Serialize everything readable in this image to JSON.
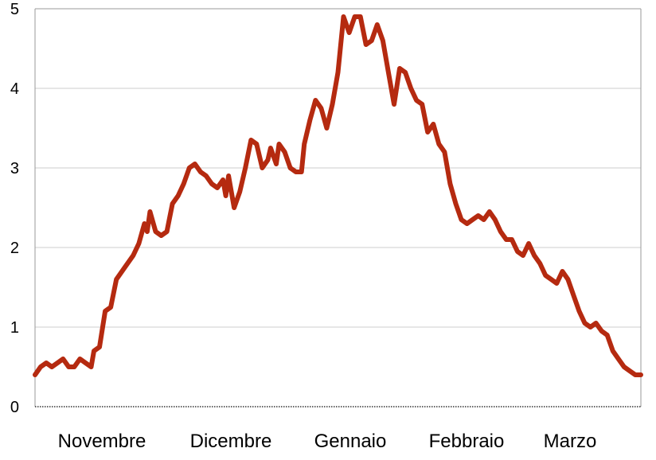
{
  "chart_data": {
    "type": "line",
    "title": "",
    "xlabel": "",
    "ylabel": "",
    "ylim": [
      0,
      5
    ],
    "yticks": [
      "0",
      "1",
      "2",
      "3",
      "4",
      "5"
    ],
    "x_tick_labels": [
      "Novembre",
      "Dicembre",
      "Gennaio",
      "Febbraio",
      "Marzo"
    ],
    "grid": true,
    "legend": "none",
    "x_unit": "day index from start of Novembre",
    "series": [
      {
        "color": "#b52a10",
        "points": [
          [
            0,
            0.4
          ],
          [
            2,
            0.5
          ],
          [
            4,
            0.55
          ],
          [
            6,
            0.5
          ],
          [
            8,
            0.55
          ],
          [
            10,
            0.6
          ],
          [
            12,
            0.5
          ],
          [
            14,
            0.5
          ],
          [
            16,
            0.6
          ],
          [
            18,
            0.55
          ],
          [
            20,
            0.5
          ],
          [
            21,
            0.7
          ],
          [
            23,
            0.75
          ],
          [
            25,
            1.2
          ],
          [
            27,
            1.25
          ],
          [
            29,
            1.6
          ],
          [
            32,
            1.75
          ],
          [
            35,
            1.9
          ],
          [
            37,
            2.05
          ],
          [
            39,
            2.3
          ],
          [
            40,
            2.2
          ],
          [
            41,
            2.45
          ],
          [
            43,
            2.2
          ],
          [
            45,
            2.15
          ],
          [
            47,
            2.2
          ],
          [
            49,
            2.55
          ],
          [
            51,
            2.65
          ],
          [
            53,
            2.8
          ],
          [
            55,
            3.0
          ],
          [
            57,
            3.05
          ],
          [
            59,
            2.95
          ],
          [
            61,
            2.9
          ],
          [
            63,
            2.8
          ],
          [
            65,
            2.75
          ],
          [
            67,
            2.85
          ],
          [
            68,
            2.65
          ],
          [
            69,
            2.9
          ],
          [
            71,
            2.5
          ],
          [
            73,
            2.7
          ],
          [
            75,
            3.0
          ],
          [
            77,
            3.35
          ],
          [
            79,
            3.3
          ],
          [
            81,
            3.0
          ],
          [
            83,
            3.1
          ],
          [
            84,
            3.25
          ],
          [
            86,
            3.05
          ],
          [
            87,
            3.3
          ],
          [
            89,
            3.2
          ],
          [
            91,
            3.0
          ],
          [
            93,
            2.95
          ],
          [
            95,
            2.95
          ],
          [
            96,
            3.3
          ],
          [
            98,
            3.6
          ],
          [
            100,
            3.85
          ],
          [
            102,
            3.75
          ],
          [
            104,
            3.5
          ],
          [
            106,
            3.8
          ],
          [
            108,
            4.2
          ],
          [
            110,
            4.9
          ],
          [
            112,
            4.7
          ],
          [
            114,
            4.9
          ],
          [
            116,
            4.9
          ],
          [
            118,
            4.55
          ],
          [
            120,
            4.6
          ],
          [
            122,
            4.8
          ],
          [
            124,
            4.6
          ],
          [
            126,
            4.2
          ],
          [
            128,
            3.8
          ],
          [
            130,
            4.25
          ],
          [
            132,
            4.2
          ],
          [
            134,
            4.0
          ],
          [
            136,
            3.85
          ],
          [
            138,
            3.8
          ],
          [
            140,
            3.45
          ],
          [
            142,
            3.55
          ],
          [
            144,
            3.3
          ],
          [
            146,
            3.2
          ],
          [
            148,
            2.8
          ],
          [
            150,
            2.55
          ],
          [
            152,
            2.35
          ],
          [
            154,
            2.3
          ],
          [
            156,
            2.35
          ],
          [
            158,
            2.4
          ],
          [
            160,
            2.35
          ],
          [
            162,
            2.45
          ],
          [
            164,
            2.35
          ],
          [
            166,
            2.2
          ],
          [
            168,
            2.1
          ],
          [
            170,
            2.1
          ],
          [
            172,
            1.95
          ],
          [
            174,
            1.9
          ],
          [
            176,
            2.05
          ],
          [
            178,
            1.9
          ],
          [
            180,
            1.8
          ],
          [
            182,
            1.65
          ],
          [
            184,
            1.6
          ],
          [
            186,
            1.55
          ],
          [
            188,
            1.7
          ],
          [
            190,
            1.6
          ],
          [
            192,
            1.4
          ],
          [
            194,
            1.2
          ],
          [
            196,
            1.05
          ],
          [
            198,
            1.0
          ],
          [
            200,
            1.05
          ],
          [
            202,
            0.95
          ],
          [
            204,
            0.9
          ],
          [
            206,
            0.7
          ],
          [
            208,
            0.6
          ],
          [
            210,
            0.5
          ],
          [
            212,
            0.45
          ],
          [
            214,
            0.4
          ],
          [
            216,
            0.4
          ]
        ]
      }
    ]
  }
}
